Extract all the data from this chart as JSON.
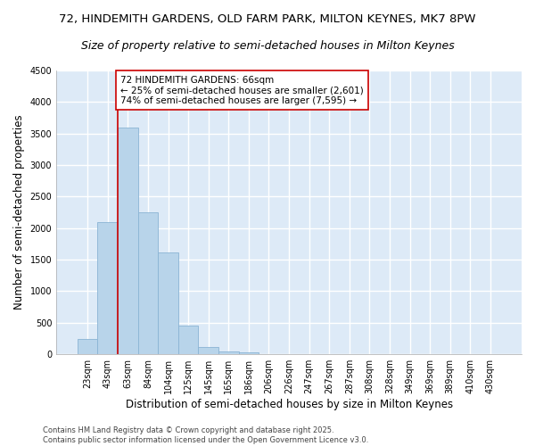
{
  "title_line1": "72, HINDEMITH GARDENS, OLD FARM PARK, MILTON KEYNES, MK7 8PW",
  "title_line2": "Size of property relative to semi-detached houses in Milton Keynes",
  "xlabel": "Distribution of semi-detached houses by size in Milton Keynes",
  "ylabel": "Number of semi-detached properties",
  "categories": [
    "23sqm",
    "43sqm",
    "63sqm",
    "84sqm",
    "104sqm",
    "125sqm",
    "145sqm",
    "165sqm",
    "186sqm",
    "206sqm",
    "226sqm",
    "247sqm",
    "267sqm",
    "287sqm",
    "308sqm",
    "328sqm",
    "349sqm",
    "369sqm",
    "389sqm",
    "410sqm",
    "430sqm"
  ],
  "values": [
    250,
    2100,
    3600,
    2250,
    1620,
    450,
    110,
    50,
    30,
    0,
    0,
    0,
    0,
    0,
    0,
    0,
    0,
    0,
    0,
    0,
    0
  ],
  "bar_color": "#b8d4ea",
  "bar_edge_color": "#8ab4d4",
  "highlight_line_color": "#cc0000",
  "annotation_text": "72 HINDEMITH GARDENS: 66sqm\n← 25% of semi-detached houses are smaller (2,601)\n74% of semi-detached houses are larger (7,595) →",
  "annotation_box_color": "#cc0000",
  "ylim": [
    0,
    4500
  ],
  "yticks": [
    0,
    500,
    1000,
    1500,
    2000,
    2500,
    3000,
    3500,
    4000,
    4500
  ],
  "background_color": "#ddeaf7",
  "grid_color": "#ffffff",
  "footer_text": "Contains HM Land Registry data © Crown copyright and database right 2025.\nContains public sector information licensed under the Open Government Licence v3.0.",
  "title1_fontsize": 9.5,
  "title2_fontsize": 9,
  "axis_label_fontsize": 8.5,
  "tick_fontsize": 7,
  "annotation_fontsize": 7.5,
  "footer_fontsize": 6
}
